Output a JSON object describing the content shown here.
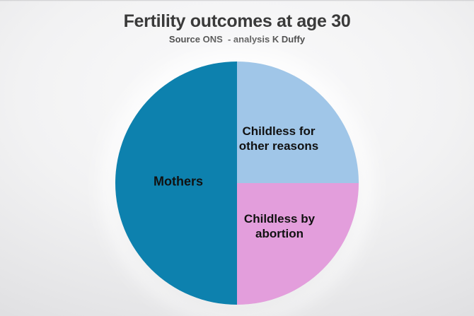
{
  "slide": {
    "title": "Fertility outcomes at age 30",
    "subtitle": "Source ONS  - analysis K Duffy"
  },
  "chart_data": {
    "type": "pie",
    "title": "Fertility outcomes at age 30",
    "subtitle": "Source ONS  - analysis K Duffy",
    "start_angle_deg": 0,
    "direction": "clockwise",
    "legend": "none",
    "labels_position": "inside-slices",
    "slices": [
      {
        "label": "Childless for other reasons",
        "label_lines": [
          "Childless for",
          "other reasons"
        ],
        "value_pct": 25,
        "color": "#a0c6e8"
      },
      {
        "label": "Childless by abortion",
        "label_lines": [
          "Childless by",
          "abortion"
        ],
        "value_pct": 25,
        "color": "#e39edc"
      },
      {
        "label": "Mothers",
        "label_lines": [
          "Mothers"
        ],
        "value_pct": 50,
        "color": "#0d81ae"
      }
    ],
    "label_color": "#111111",
    "background_top_color": "#fbfbfc",
    "background_bottom_color": "#d3d3d5"
  }
}
